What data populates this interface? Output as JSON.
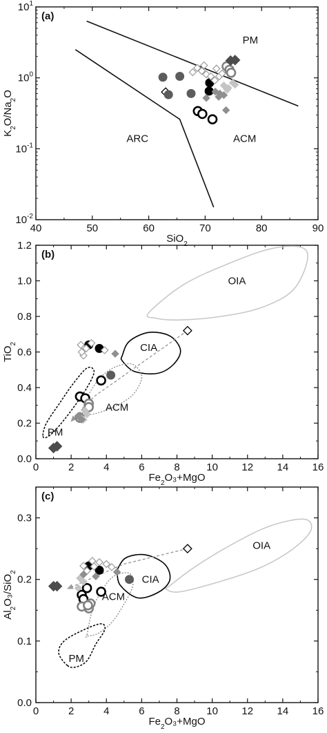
{
  "chart_data": [
    {
      "type": "scatter",
      "panel_label": "(a)",
      "xlabel": "SiO₂",
      "ylabel": "K₂O/Na₂O",
      "xlim": [
        40,
        90
      ],
      "ylim": [
        0.01,
        10
      ],
      "y_scale": "log",
      "x_ticks": [
        40,
        50,
        60,
        70,
        80,
        90
      ],
      "y_ticks": [
        {
          "v": 0.01,
          "b": "10",
          "e": "-2"
        },
        {
          "v": 0.1,
          "b": "10",
          "e": "-1"
        },
        {
          "v": 1,
          "b": "10",
          "e": "0"
        },
        {
          "v": 10,
          "b": "10",
          "e": "1"
        }
      ],
      "boundaries": [
        [
          [
            49,
            6.3
          ],
          [
            86.5,
            0.4
          ]
        ],
        [
          [
            47,
            2.5
          ],
          [
            65.5,
            0.26
          ],
          [
            71.5,
            0.015
          ]
        ]
      ],
      "field_labels": [
        {
          "text": "PM",
          "x": 78,
          "y": 3.4
        },
        {
          "text": "ARC",
          "x": 58,
          "y": 0.14
        },
        {
          "text": "ACM",
          "x": 77,
          "y": 0.14
        }
      ],
      "series": [
        {
          "marker": "diamond-open-black",
          "points": [
            [
              63,
              0.63
            ]
          ]
        },
        {
          "marker": "circle-dark-gray",
          "points": [
            [
              62.5,
              1.02
            ],
            [
              63.5,
              0.58
            ],
            [
              65.5,
              1.05
            ],
            [
              67.5,
              0.6
            ]
          ]
        },
        {
          "marker": "circle-black",
          "points": [
            [
              70.8,
              0.85
            ],
            [
              70.7,
              0.65
            ]
          ]
        },
        {
          "marker": "circle-open-black",
          "points": [
            [
              68.7,
              0.34
            ],
            [
              69.5,
              0.31
            ],
            [
              71.3,
              0.26
            ]
          ]
        },
        {
          "marker": "circle-open-gray",
          "points": [
            [
              73.8,
              1.45
            ],
            [
              74.3,
              1.3
            ],
            [
              74.6,
              1.18
            ]
          ]
        },
        {
          "marker": "diamond-open-gray",
          "points": [
            [
              67.8,
              1.2
            ],
            [
              68.6,
              1.38
            ],
            [
              69.4,
              1.25
            ],
            [
              70.2,
              1.12
            ],
            [
              71.0,
              1.05
            ],
            [
              69.8,
              1.5
            ],
            [
              72.0,
              1.35
            ],
            [
              72.5,
              1.05
            ],
            [
              73.0,
              1.15
            ],
            [
              71.7,
              0.92
            ]
          ]
        },
        {
          "marker": "diamond-light-gray",
          "points": [
            [
              73.3,
              0.78
            ],
            [
              74.1,
              0.72
            ],
            [
              74.9,
              0.85
            ],
            [
              73.9,
              0.68
            ],
            [
              75.3,
              0.8
            ]
          ]
        },
        {
          "marker": "diamond-gray",
          "points": [
            [
              71.8,
              0.64
            ],
            [
              72.6,
              0.6
            ],
            [
              73.3,
              0.57
            ],
            [
              72.4,
              0.54
            ],
            [
              73.7,
              0.35
            ],
            [
              70.2,
              0.52
            ]
          ]
        },
        {
          "marker": "diamond-dark-gray",
          "points": [
            [
              74.5,
              1.75
            ],
            [
              75.3,
              1.78
            ]
          ]
        }
      ]
    },
    {
      "type": "scatter",
      "panel_label": "(b)",
      "xlabel": "Fe₂O₃+MgO",
      "ylabel": "TiO₂",
      "xlim": [
        0,
        16
      ],
      "ylim": [
        0,
        1.2
      ],
      "x_ticks": [
        0,
        2,
        4,
        6,
        8,
        10,
        12,
        14,
        16
      ],
      "y_ticks": [
        "0.0",
        "0.2",
        "0.4",
        "0.6",
        "0.8",
        "1.0",
        "1.2"
      ],
      "field_labels": [
        {
          "text": "OIA",
          "x": 11.4,
          "y": 1.0
        },
        {
          "text": "CIA",
          "x": 6.4,
          "y": 0.625
        },
        {
          "text": "ACM",
          "x": 4.6,
          "y": 0.29
        },
        {
          "text": "PM",
          "x": 1.1,
          "y": 0.15
        }
      ],
      "series": [
        {
          "marker": "diamond-open-black",
          "points": [
            [
              8.6,
              0.72
            ]
          ]
        },
        {
          "marker": "circle-black",
          "points": [
            [
              3.0,
              0.64
            ],
            [
              3.6,
              0.62
            ]
          ]
        },
        {
          "marker": "circle-dark-gray",
          "points": [
            [
              4.25,
              0.47
            ]
          ]
        },
        {
          "marker": "circle-open-black",
          "points": [
            [
              3.7,
              0.44
            ],
            [
              2.5,
              0.35
            ],
            [
              2.8,
              0.34
            ]
          ]
        },
        {
          "marker": "circle-open-gray",
          "points": [
            [
              3.0,
              0.31
            ],
            [
              3.0,
              0.29
            ],
            [
              2.5,
              0.23
            ]
          ]
        },
        {
          "marker": "diamond-open-gray",
          "points": [
            [
              2.55,
              0.64
            ],
            [
              2.85,
              0.62
            ],
            [
              3.15,
              0.65
            ],
            [
              2.7,
              0.58
            ],
            [
              3.9,
              0.61
            ],
            [
              2.6,
              0.6
            ]
          ]
        },
        {
          "marker": "diamond-light-gray",
          "points": [
            [
              2.7,
              0.22
            ],
            [
              2.9,
              0.25
            ],
            [
              2.8,
              0.27
            ]
          ]
        },
        {
          "marker": "diamond-gray",
          "points": [
            [
              4.5,
              0.59
            ],
            [
              2.4,
              0.24
            ],
            [
              2.6,
              0.22
            ]
          ]
        },
        {
          "marker": "diamond-dark-gray",
          "points": [
            [
              1.0,
              0.06
            ],
            [
              1.2,
              0.07
            ]
          ]
        }
      ]
    },
    {
      "type": "scatter",
      "panel_label": "(c)",
      "xlabel": "Fe₂O₃+MgO",
      "ylabel": "Al₂O₃/SiO₂",
      "xlim": [
        0,
        16
      ],
      "ylim": [
        0,
        0.35
      ],
      "x_ticks": [
        0,
        2,
        4,
        6,
        8,
        10,
        12,
        14,
        16
      ],
      "y_ticks": [
        "0.0",
        "0.1",
        "0.2",
        "0.3"
      ],
      "field_labels": [
        {
          "text": "OIA",
          "x": 12.8,
          "y": 0.255
        },
        {
          "text": "CIA",
          "x": 6.5,
          "y": 0.2
        },
        {
          "text": "ACM",
          "x": 4.4,
          "y": 0.172
        },
        {
          "text": "PM",
          "x": 2.3,
          "y": 0.072
        }
      ],
      "series": [
        {
          "marker": "diamond-open-black",
          "points": [
            [
              8.6,
              0.25
            ]
          ]
        },
        {
          "marker": "circle-black",
          "points": [
            [
              3.0,
              0.222
            ],
            [
              3.6,
              0.215
            ]
          ]
        },
        {
          "marker": "circle-dark-gray",
          "points": [
            [
              5.3,
              0.2
            ]
          ]
        },
        {
          "marker": "circle-open-black",
          "points": [
            [
              2.9,
              0.186
            ],
            [
              3.7,
              0.18
            ],
            [
              2.6,
              0.175
            ],
            [
              2.7,
              0.168
            ]
          ]
        },
        {
          "marker": "circle-open-gray",
          "points": [
            [
              2.6,
              0.156
            ],
            [
              3.0,
              0.153
            ],
            [
              3.1,
              0.161
            ],
            [
              2.95,
              0.158
            ]
          ]
        },
        {
          "marker": "diamond-open-gray",
          "points": [
            [
              2.7,
              0.222
            ],
            [
              3.2,
              0.23
            ],
            [
              3.6,
              0.228
            ],
            [
              4.0,
              0.225
            ],
            [
              3.3,
              0.221
            ],
            [
              2.9,
              0.214
            ],
            [
              4.3,
              0.22
            ]
          ]
        },
        {
          "marker": "diamond-light-gray",
          "points": [
            [
              2.5,
              0.202
            ],
            [
              2.7,
              0.196
            ],
            [
              2.4,
              0.186
            ]
          ]
        },
        {
          "marker": "diamond-gray",
          "points": [
            [
              4.6,
              0.212
            ],
            [
              3.4,
              0.205
            ],
            [
              2.7,
              0.208
            ]
          ]
        },
        {
          "marker": "diamond-dark-gray",
          "points": [
            [
              1.0,
              0.189
            ],
            [
              1.2,
              0.189
            ]
          ]
        }
      ]
    }
  ]
}
